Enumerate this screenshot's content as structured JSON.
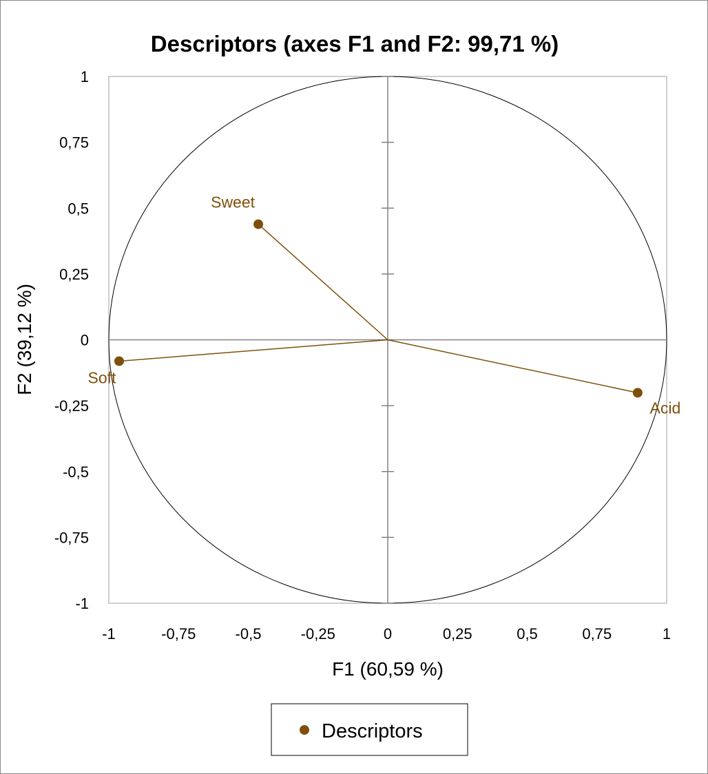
{
  "chart_data": {
    "type": "scatter",
    "title": "Descriptors (axes F1 and F2: 99,71 %)",
    "xlabel": "F1 (60,59 %)",
    "ylabel": "F2 (39,12 %)",
    "xlim": [
      -1,
      1
    ],
    "ylim": [
      -1,
      1
    ],
    "xticks": [
      "-1",
      "-0,75",
      "-0,5",
      "-0,25",
      "0",
      "0,25",
      "0,5",
      "0,75",
      "1"
    ],
    "yticks": [
      "1",
      "0,75",
      "0,5",
      "0,25",
      "0",
      "-0,25",
      "-0,5",
      "-0,75",
      "-1"
    ],
    "grid": false,
    "unit_circle": true,
    "vectors_from_origin": true,
    "legend_position": "bottom",
    "series": [
      {
        "name": "Descriptors",
        "color": "#7f4f0a",
        "points": [
          {
            "label": "Sweet",
            "x": -0.464,
            "y": 0.439
          },
          {
            "label": "Soft",
            "x": -0.963,
            "y": -0.081
          },
          {
            "label": "Acid",
            "x": 0.896,
            "y": -0.201
          }
        ]
      }
    ]
  }
}
